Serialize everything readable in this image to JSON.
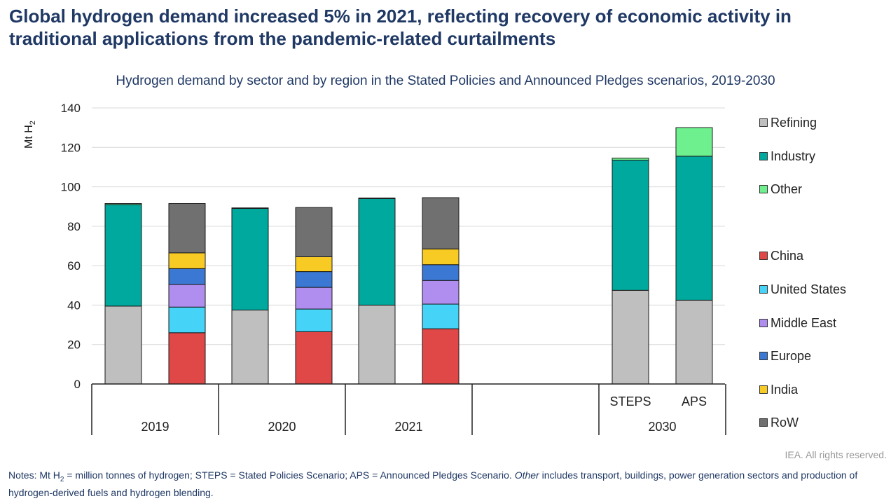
{
  "headline": "Global hydrogen demand increased 5% in 2021, reflecting recovery of economic activity in traditional applications from the pandemic-related curtailments",
  "chart_data": {
    "type": "bar",
    "stacked": true,
    "title": "Hydrogen demand by sector and by region in the Stated Policies and Announced Pledges scenarios, 2019-2030",
    "ylabel": "Mt H",
    "ylabel_subscript": "2",
    "ylim": [
      0,
      140
    ],
    "yticks": [
      0,
      20,
      40,
      60,
      80,
      100,
      120,
      140
    ],
    "legend_position": "right",
    "groups": [
      {
        "label": "2019",
        "bars": [
          {
            "label": "",
            "kind": "sector",
            "segments": {
              "Refining": 39.5,
              "Industry": 51.5,
              "Other": 0.5
            }
          },
          {
            "label": "",
            "kind": "region",
            "segments": {
              "China": 26,
              "United States": 13,
              "Middle East": 11.5,
              "Europe": 8,
              "India": 8,
              "RoW": 25
            }
          }
        ]
      },
      {
        "label": "2020",
        "bars": [
          {
            "label": "",
            "kind": "sector",
            "segments": {
              "Refining": 37.5,
              "Industry": 51.5,
              "Other": 0.3
            }
          },
          {
            "label": "",
            "kind": "region",
            "segments": {
              "China": 26.5,
              "United States": 11.5,
              "Middle East": 11,
              "Europe": 8,
              "India": 7.5,
              "RoW": 25
            }
          }
        ]
      },
      {
        "label": "2021",
        "bars": [
          {
            "label": "",
            "kind": "sector",
            "segments": {
              "Refining": 40,
              "Industry": 54,
              "Other": 0.3
            }
          },
          {
            "label": "",
            "kind": "region",
            "segments": {
              "China": 28,
              "United States": 12.5,
              "Middle East": 12,
              "Europe": 8,
              "India": 8,
              "RoW": 26
            }
          }
        ]
      },
      {
        "label": "",
        "bars": []
      },
      {
        "label": "2030",
        "bars": [
          {
            "label": "STEPS",
            "kind": "sector",
            "segments": {
              "Refining": 47.5,
              "Industry": 66,
              "Other": 1
            }
          },
          {
            "label": "APS",
            "kind": "sector",
            "segments": {
              "Refining": 42.5,
              "Industry": 73,
              "Other": 14.5
            }
          }
        ]
      }
    ],
    "series": [
      {
        "name": "Refining",
        "color": "#bfbfbf"
      },
      {
        "name": "Industry",
        "color": "#00a99d"
      },
      {
        "name": "Other",
        "color": "#6ef08e"
      },
      {
        "name": "China",
        "color": "#e04848"
      },
      {
        "name": "United States",
        "color": "#45d3f7"
      },
      {
        "name": "Middle East",
        "color": "#b08ef0"
      },
      {
        "name": "Europe",
        "color": "#3a78d4"
      },
      {
        "name": "India",
        "color": "#f8ca24"
      },
      {
        "name": "RoW",
        "color": "#707070"
      }
    ]
  },
  "legend": [
    "Refining",
    "Industry",
    "Other",
    "China",
    "United States",
    "Middle East",
    "Europe",
    "India",
    "RoW"
  ],
  "rights": "IEA. All rights reserved.",
  "notes": {
    "prefix": "Notes: Mt H",
    "sub": "2",
    "mid": " = million tonnes of hydrogen; STEPS = Stated Policies Scenario; APS = Announced Pledges Scenario. ",
    "italic": "Other",
    "suffix": " includes transport, buildings, power generation sectors and production of hydrogen-derived fuels and hydrogen blending."
  }
}
